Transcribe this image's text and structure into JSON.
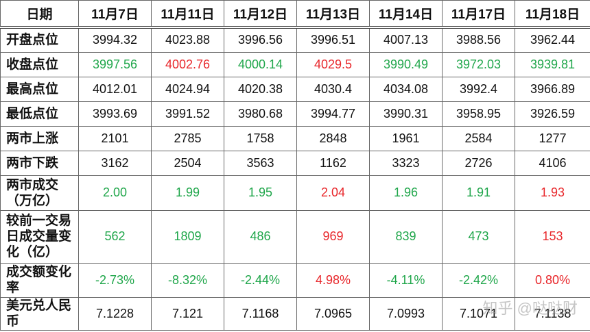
{
  "table": {
    "columns": [
      "日期",
      "11月7日",
      "11月11日",
      "11月12日",
      "11月13日",
      "11月14日",
      "11月17日",
      "11月18日"
    ],
    "rows": [
      {
        "label": "开盘点位",
        "cells": [
          "3994.32",
          "4023.88",
          "3996.56",
          "3996.51",
          "4007.13",
          "3988.56",
          "3962.44"
        ]
      },
      {
        "label": "收盘点位",
        "cells": [
          "3997.56",
          "4002.76",
          "4000.14",
          "4029.5",
          "3990.49",
          "3972.03",
          "3939.81"
        ],
        "colors": [
          "#1fa64a",
          "#e8262a",
          "#1fa64a",
          "#e8262a",
          "#1fa64a",
          "#1fa64a",
          "#1fa64a"
        ]
      },
      {
        "label": "最高点位",
        "cells": [
          "4012.01",
          "4024.94",
          "4020.38",
          "4030.4",
          "4034.08",
          "3992.4",
          "3966.89"
        ]
      },
      {
        "label": "最低点位",
        "cells": [
          "3993.69",
          "3991.52",
          "3980.68",
          "3994.77",
          "3990.31",
          "3958.95",
          "3926.59"
        ]
      },
      {
        "label": "两市上涨",
        "cells": [
          "2101",
          "2785",
          "1758",
          "2848",
          "1961",
          "2584",
          "1277"
        ]
      },
      {
        "label": "两市下跌",
        "cells": [
          "3162",
          "2504",
          "3563",
          "1162",
          "3323",
          "2726",
          "4106"
        ]
      },
      {
        "label": "两市成交（万亿）",
        "cells": [
          "2.00",
          "1.99",
          "1.95",
          "2.04",
          "1.96",
          "1.91",
          "1.93"
        ],
        "colors": [
          "#1fa64a",
          "#1fa64a",
          "#1fa64a",
          "#e8262a",
          "#1fa64a",
          "#1fa64a",
          "#e8262a"
        ]
      },
      {
        "label": "较前一交易日成交量变化（亿）",
        "cells": [
          "562",
          "1809",
          "486",
          "969",
          "839",
          "473",
          "153"
        ],
        "colors": [
          "#1fa64a",
          "#1fa64a",
          "#1fa64a",
          "#e8262a",
          "#1fa64a",
          "#1fa64a",
          "#e8262a"
        ]
      },
      {
        "label": "成交额变化率",
        "cells": [
          "-2.73%",
          "-8.32%",
          "-2.44%",
          "4.98%",
          "-4.11%",
          "-2.42%",
          "0.80%"
        ],
        "colors": [
          "#1fa64a",
          "#1fa64a",
          "#1fa64a",
          "#e8262a",
          "#1fa64a",
          "#1fa64a",
          "#e8262a"
        ]
      },
      {
        "label": "美元兑人民币",
        "cells": [
          "7.1228",
          "7.121",
          "7.1168",
          "7.0965",
          "7.0993",
          "7.1071",
          "7.1138"
        ]
      }
    ]
  },
  "watermark": "知乎 @哒哒财"
}
